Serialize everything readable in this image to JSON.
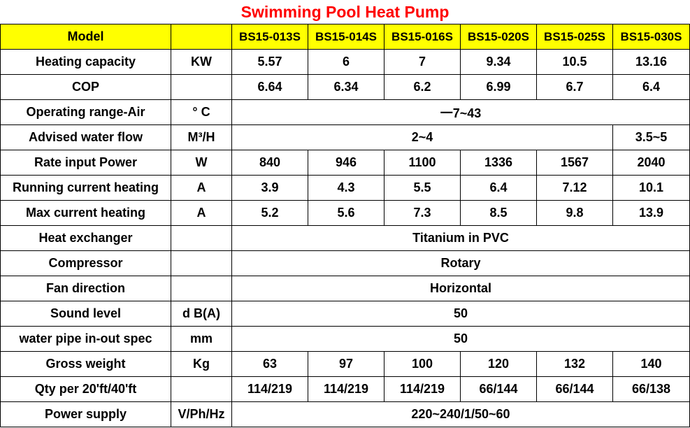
{
  "title": "Swimming Pool Heat Pump",
  "colors": {
    "title": "#ff0000",
    "header_bg": "#ffff00",
    "border": "#000000"
  },
  "header": {
    "label": "Model",
    "unit": "",
    "models": [
      "BS15-013S",
      "BS15-014S",
      "BS15-016S",
      "BS15-020S",
      "BS15-025S",
      "BS15-030S"
    ]
  },
  "rows": {
    "heating_capacity": {
      "label": "Heating capacity",
      "unit": "KW",
      "values": [
        "5.57",
        "6",
        "7",
        "9.34",
        "10.5",
        "13.16"
      ]
    },
    "cop": {
      "label": "COP",
      "unit": "",
      "values": [
        "6.64",
        "6.34",
        "6.2",
        "6.99",
        "6.7",
        "6.4"
      ]
    },
    "operating_range_air": {
      "label": "Operating range-Air",
      "unit": "° C",
      "value": "一7~43"
    },
    "advised_water_flow": {
      "label": "Advised water flow",
      "unit": "M³/H",
      "value_group": "2~4",
      "value_last": "3.5~5"
    },
    "rate_input_power": {
      "label": "Rate input Power",
      "unit": "W",
      "values": [
        "840",
        "946",
        "1100",
        "1336",
        "1567",
        "2040"
      ]
    },
    "running_current_heating": {
      "label": "Running current heating",
      "unit": "A",
      "values": [
        "3.9",
        "4.3",
        "5.5",
        "6.4",
        "7.12",
        "10.1"
      ]
    },
    "max_current_heating": {
      "label": "Max current heating",
      "unit": "A",
      "values": [
        "5.2",
        "5.6",
        "7.3",
        "8.5",
        "9.8",
        "13.9"
      ]
    },
    "heat_exchanger": {
      "label": "Heat exchanger",
      "unit": "",
      "value": "Titanium in PVC"
    },
    "compressor": {
      "label": "Compressor",
      "unit": "",
      "value": "Rotary"
    },
    "fan_direction": {
      "label": "Fan direction",
      "unit": "",
      "value": "Horizontal"
    },
    "sound_level": {
      "label": "Sound level",
      "unit": "d B(A)",
      "value": "50"
    },
    "water_pipe_spec": {
      "label": "water pipe in-out spec",
      "unit": "mm",
      "value": "50"
    },
    "gross_weight": {
      "label": "Gross weight",
      "unit": "Kg",
      "values": [
        "63",
        "97",
        "100",
        "120",
        "132",
        "140"
      ]
    },
    "qty_per_container": {
      "label": "Qty per 20'ft/40'ft",
      "unit": "",
      "values": [
        "114/219",
        "114/219",
        "114/219",
        "66/144",
        "66/144",
        "66/138"
      ]
    },
    "power_supply": {
      "label": "Power supply",
      "unit": "V/Ph/Hz",
      "value": "220~240/1/50~60"
    }
  }
}
